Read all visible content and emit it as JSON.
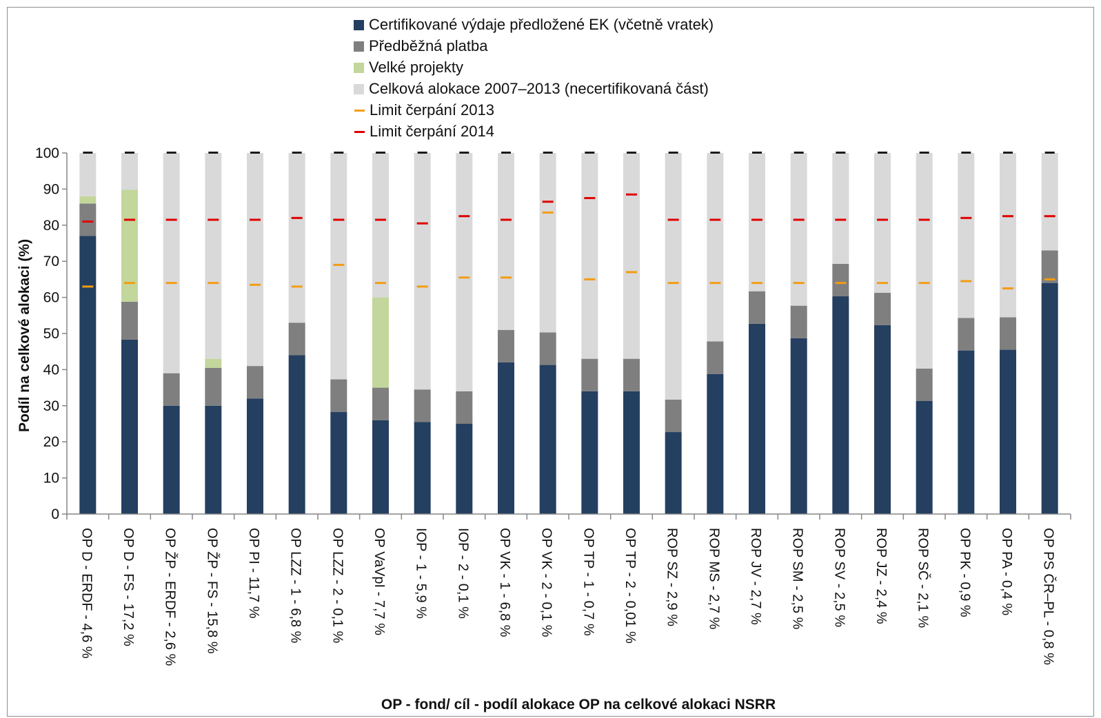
{
  "chart_data": {
    "type": "bar",
    "stacked": true,
    "title": "",
    "xlabel": "OP - fond/ cíl - podíl alokace OP na celkové alokaci NSRR",
    "ylabel": "Podíl na celkové alokaci (%)",
    "ylim": [
      0,
      100
    ],
    "yticks": [
      "0",
      "10",
      "20",
      "30",
      "40",
      "50",
      "60",
      "70",
      "80",
      "90",
      "100"
    ],
    "grid": false,
    "legend_position": "top-center",
    "categories": [
      "OP D - ERDF - 4,6 %",
      "OP D - FS - 17,2 %",
      "OP ŽP - ERDF - 2,6 %",
      "OP ŽP - FS - 15,8 %",
      "OP PI - 11,7 %",
      "OP LZZ - 1 - 6,8 %",
      "OP LZZ - 2 - 0,1 %",
      "OP VaVpI - 7,7 %",
      "IOP - 1 - 5,9 %",
      "IOP - 2 - 0,1 %",
      "OP VK - 1 - 6,8 %",
      "OP VK - 2 - 0,1 %",
      "OP TP - 1 - 0,7 %",
      "OP TP - 2 - 0,01 %",
      "ROP SZ - 2,9 %",
      "ROP MS - 2,7 %",
      "ROP JV - 2,7 %",
      "ROP SM - 2,5 %",
      "ROP SV - 2,5 %",
      "ROP JZ - 2,4 %",
      "ROP SČ - 2,1 %",
      "OP PK - 0,9 %",
      "OP PA - 0,4 %",
      "OP PS ČR–PL - 0,8 %"
    ],
    "series": [
      {
        "name": "Certifikované výdaje předložené EK (včetně vratek)",
        "color": "#243f60",
        "values": [
          77,
          48.3,
          30,
          30,
          32,
          44,
          28.3,
          26,
          25.5,
          25,
          42,
          41.3,
          34,
          34,
          22.7,
          38.8,
          52.7,
          48.7,
          60.3,
          52.3,
          31.3,
          45.3,
          45.5,
          64
        ]
      },
      {
        "name": "Předběžná platba",
        "color": "#7f7f7f",
        "values": [
          9,
          10.5,
          9,
          10.5,
          9,
          9,
          9,
          9,
          9,
          9,
          9,
          9,
          9,
          9,
          9,
          9,
          9,
          9,
          9,
          9,
          9,
          9,
          9,
          9
        ]
      },
      {
        "name": "Velké projekty",
        "color": "#c3d69b",
        "values": [
          2,
          31,
          0,
          2.5,
          0,
          0,
          0,
          25,
          0,
          0,
          0,
          0,
          0,
          0,
          0,
          0,
          0,
          0,
          0,
          0,
          0,
          0,
          0,
          0
        ]
      },
      {
        "name": "Celková alokace 2007–2013 (necertifikovaná část)",
        "color": "#d9d9d9",
        "values": [
          12,
          10.2,
          61,
          57,
          59,
          47,
          62.7,
          40,
          65.5,
          66,
          49,
          49.7,
          57,
          57,
          68.3,
          52.2,
          38.3,
          42.3,
          30.7,
          38.7,
          59.7,
          45.7,
          45.5,
          27
        ]
      }
    ],
    "markers": [
      {
        "name": "Limit čerpání 2013",
        "color": "#f39c12",
        "values": [
          63,
          64,
          64,
          64,
          63.5,
          63,
          69,
          64,
          63,
          65.5,
          65.5,
          83.5,
          65,
          67,
          64,
          64,
          64,
          64,
          64,
          64,
          64,
          64.5,
          62.5,
          65
        ]
      },
      {
        "name": "Limit čerpání 2014",
        "color": "#e00000",
        "values": [
          81,
          81.5,
          81.5,
          81.5,
          81.5,
          82,
          81.5,
          81.5,
          80.5,
          82.5,
          81.5,
          86.5,
          87.5,
          88.5,
          81.5,
          81.5,
          81.5,
          81.5,
          81.5,
          81.5,
          81.5,
          82,
          82.5,
          82.5
        ]
      }
    ],
    "top_marker_color": "#1a1a1a"
  }
}
